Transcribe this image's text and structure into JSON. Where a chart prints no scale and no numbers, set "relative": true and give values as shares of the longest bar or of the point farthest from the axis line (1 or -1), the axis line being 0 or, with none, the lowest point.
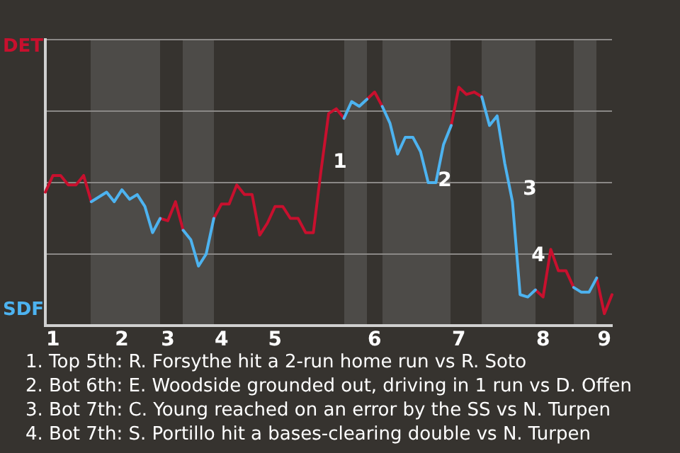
{
  "chart_data": {
    "type": "line",
    "relative": true,
    "categories": [
      null,
      "1",
      null,
      null,
      null,
      null,
      null,
      null,
      null,
      null,
      "2",
      null,
      null,
      null,
      null,
      null,
      "3",
      null,
      null,
      null,
      null,
      null,
      null,
      "4",
      null,
      null,
      null,
      null,
      null,
      null,
      "5",
      null,
      null,
      null,
      null,
      null,
      null,
      null,
      null,
      null,
      null,
      null,
      null,
      "6",
      null,
      null,
      null,
      null,
      null,
      null,
      null,
      null,
      null,
      null,
      "7",
      null,
      null,
      null,
      null,
      null,
      null,
      null,
      null,
      null,
      null,
      "8",
      null,
      null,
      null,
      null,
      null,
      null,
      null,
      "9",
      null
    ],
    "series": [
      {
        "color": "#c8102e",
        "values": [
          0.56,
          0.63,
          0.63,
          0.59,
          0.59,
          0.63,
          0.52,
          null,
          null,
          null,
          null,
          null,
          null,
          null,
          null,
          0.45,
          0.44,
          0.52,
          0.4,
          null,
          null,
          null,
          0.45,
          0.51,
          0.51,
          0.59,
          0.55,
          0.55,
          0.38,
          0.43,
          0.5,
          0.5,
          0.45,
          0.45,
          0.39,
          0.39,
          0.65,
          0.89,
          0.91,
          0.87,
          null,
          null,
          0.95,
          0.98,
          0.92,
          null,
          null,
          null,
          null,
          null,
          null,
          null,
          null,
          0.84,
          1,
          0.97,
          0.98,
          0.96,
          null,
          null,
          null,
          null,
          null,
          null,
          0.15,
          0.12,
          0.32,
          0.23,
          0.23,
          0.16,
          null,
          null,
          0.2,
          0.05,
          0.13
        ]
      },
      {
        "color": "#4db3f0",
        "values": [
          null,
          null,
          null,
          null,
          null,
          null,
          0.52,
          0.54,
          0.56,
          0.52,
          0.57,
          0.53,
          0.55,
          0.5,
          0.39,
          0.45,
          null,
          null,
          0.4,
          0.36,
          0.25,
          0.3,
          0.45,
          null,
          null,
          null,
          null,
          null,
          null,
          null,
          null,
          null,
          null,
          null,
          null,
          null,
          null,
          null,
          null,
          0.87,
          0.94,
          0.92,
          0.95,
          null,
          0.92,
          0.85,
          0.72,
          0.79,
          0.79,
          0.73,
          0.6,
          0.6,
          0.76,
          0.84,
          null,
          null,
          null,
          0.96,
          0.84,
          0.88,
          0.68,
          0.52,
          0.13,
          0.12,
          0.15,
          null,
          null,
          null,
          null,
          0.16,
          0.14,
          0.14,
          0.2,
          null,
          null
        ]
      }
    ],
    "tick_labels": "x",
    "grid": "y",
    "legend": false,
    "marker": "none",
    "line_style": "solid",
    "annotations": [
      "DET",
      "SDF",
      "1",
      "2",
      "3",
      "4",
      "1. Top 5th: R. Forsythe hit a 2-run home run vs R. Soto",
      "2. Bot 6th: E. Woodside grounded out, driving in 1 run vs D. Offen",
      "3. Bot 7th: C. Young reached on an error by the SS vs N. Turpen",
      "4. Bot 7th: S. Portillo hit a bases-clearing double vs N. Turpen"
    ]
  }
}
